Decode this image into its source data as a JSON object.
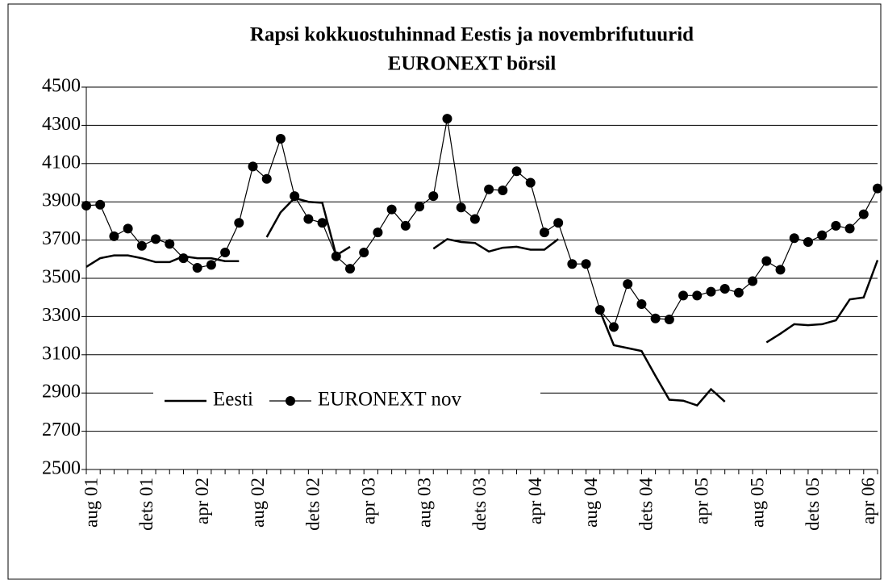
{
  "chart_data": {
    "type": "line",
    "title": "Rapsi kokkuostuhinnad Eestis ja novembrifutuurid",
    "subtitle": "EURONEXT börsil",
    "categories": [
      "aug 01",
      null,
      null,
      null,
      "dets 01",
      null,
      null,
      null,
      "apr 02",
      null,
      null,
      null,
      "aug 02",
      null,
      null,
      null,
      "dets 02",
      null,
      null,
      null,
      "apr 03",
      null,
      null,
      null,
      "aug 03",
      null,
      null,
      null,
      "dets 03",
      null,
      null,
      null,
      "apr 04",
      null,
      null,
      null,
      "aug 04",
      null,
      null,
      null,
      "dets 04",
      null,
      null,
      null,
      "apr 05",
      null,
      null,
      null,
      "aug 05",
      null,
      null,
      null,
      "dets 05",
      null,
      null,
      null,
      "apr 06",
      null
    ],
    "series": [
      {
        "name": "Eesti",
        "color": "#000000",
        "marker": false,
        "values": [
          3560,
          3605,
          3620,
          3620,
          3605,
          3585,
          3585,
          3615,
          3605,
          3605,
          3590,
          3590,
          null,
          3715,
          3845,
          3920,
          3900,
          3895,
          3620,
          3665,
          null,
          null,
          null,
          null,
          null,
          3655,
          3705,
          3690,
          3685,
          3640,
          3660,
          3665,
          3650,
          3650,
          3705,
          null,
          null,
          3330,
          3150,
          3135,
          3120,
          2990,
          2865,
          2860,
          2835,
          2920,
          2855,
          null,
          null,
          3165,
          3210,
          3260,
          3255,
          3260,
          3280,
          3390,
          3400,
          3595
        ]
      },
      {
        "name": "EURONEXT nov",
        "color": "#000000",
        "marker": true,
        "values": [
          3880,
          3885,
          3720,
          3760,
          3670,
          3705,
          3680,
          3605,
          3555,
          3570,
          3635,
          3790,
          4085,
          4020,
          4230,
          3930,
          3810,
          3790,
          3615,
          3550,
          3635,
          3740,
          3860,
          3775,
          3875,
          3930,
          4335,
          3870,
          3810,
          3965,
          3960,
          4060,
          4000,
          3740,
          3790,
          3575,
          3575,
          3335,
          3245,
          3470,
          3365,
          3290,
          3285,
          3410,
          3410,
          3430,
          3445,
          3425,
          3485,
          3590,
          3545,
          3710,
          3690,
          3725,
          3775,
          3760,
          3835,
          3970
        ]
      }
    ],
    "ylim": [
      2500,
      4500
    ],
    "yticks": [
      2500,
      2700,
      2900,
      3100,
      3300,
      3500,
      3700,
      3900,
      4100,
      4300,
      4500
    ],
    "grid": true,
    "legend": "lower left"
  }
}
